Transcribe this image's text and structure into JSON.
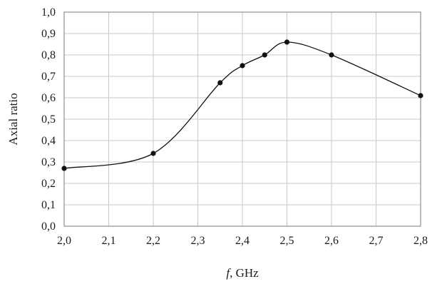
{
  "chart_data": {
    "type": "line",
    "title": "",
    "xlabel_italic": "f",
    "xlabel_rest": ", GHz",
    "ylabel": "Axial ratio",
    "xlim": [
      2.0,
      2.8
    ],
    "ylim": [
      0.0,
      1.0
    ],
    "x_ticks": [
      2.0,
      2.1,
      2.2,
      2.3,
      2.4,
      2.5,
      2.6,
      2.7,
      2.8
    ],
    "y_ticks": [
      0.0,
      0.1,
      0.2,
      0.3,
      0.4,
      0.5,
      0.6,
      0.7,
      0.8,
      0.9,
      1.0
    ],
    "x_tick_labels": [
      "2,0",
      "2,1",
      "2,2",
      "2,3",
      "2,4",
      "2,5",
      "2,6",
      "2,7",
      "2,8"
    ],
    "y_tick_labels": [
      "0,0",
      "0,1",
      "0,2",
      "0,3",
      "0,4",
      "0,5",
      "0,6",
      "0,7",
      "0,8",
      "0,9",
      "1,0"
    ],
    "grid": true,
    "legend": "none",
    "series": [
      {
        "color": "#111111",
        "marker": "circle",
        "x": [
          2.0,
          2.2,
          2.35,
          2.4,
          2.45,
          2.5,
          2.6,
          2.8
        ],
        "y": [
          0.27,
          0.34,
          0.67,
          0.75,
          0.8,
          0.86,
          0.8,
          0.61
        ]
      }
    ]
  }
}
